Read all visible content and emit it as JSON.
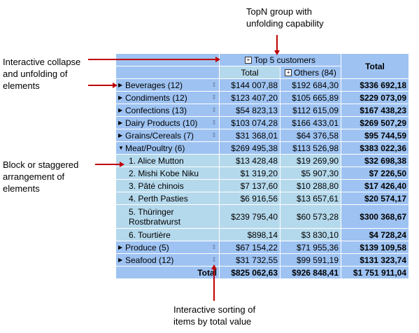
{
  "annotations": {
    "topn": "TopN group with\nunfolding capability",
    "collapse": "Interactive collapse\nand unfolding of\nelements",
    "block": "Block or staggered\narrangement of\nelements",
    "sorting": "Interactive sorting of\nitems by total value"
  },
  "header": {
    "group_title": "Top 5 customers",
    "total_label": "Total",
    "others_label": "Others (84)",
    "grand_total_label": "Total"
  },
  "rows": [
    {
      "label": "Beverages (12)",
      "a": "$144 007,88",
      "b": "$192 684,30",
      "t": "$336 692,18",
      "kind": "group"
    },
    {
      "label": "Condiments (12)",
      "a": "$123 407,20",
      "b": "$105 665,89",
      "t": "$229 073,09",
      "kind": "group"
    },
    {
      "label": "Confections (13)",
      "a": "$54 823,13",
      "b": "$112 615,09",
      "t": "$167 438,23",
      "kind": "group"
    },
    {
      "label": "Dairy Products (10)",
      "a": "$103 074,28",
      "b": "$166 433,01",
      "t": "$269 507,29",
      "kind": "group"
    },
    {
      "label": "Grains/Cereals (7)",
      "a": "$31 368,01",
      "b": "$64 376,58",
      "t": "$95 744,59",
      "kind": "group"
    },
    {
      "label": "Meat/Poultry (6)",
      "a": "$269 495,38",
      "b": "$113 526,98",
      "t": "$383 022,36",
      "kind": "expanded"
    },
    {
      "label": "1. Alice Mutton",
      "a": "$13 428,48",
      "b": "$19 269,90",
      "t": "$32 698,38",
      "kind": "child"
    },
    {
      "label": "2. Mishi Kobe Niku",
      "a": "$1 319,20",
      "b": "$5 907,30",
      "t": "$7 226,50",
      "kind": "child"
    },
    {
      "label": "3. Pâté chinois",
      "a": "$7 137,60",
      "b": "$10 288,80",
      "t": "$17 426,40",
      "kind": "child"
    },
    {
      "label": "4. Perth Pasties",
      "a": "$6 916,56",
      "b": "$13 657,61",
      "t": "$20 574,17",
      "kind": "child"
    },
    {
      "label": "5. Thüringer Rostbratwurst",
      "a": "$239 795,40",
      "b": "$60 573,28",
      "t": "$300 368,67",
      "kind": "child2"
    },
    {
      "label": "6. Tourtière",
      "a": "$898,14",
      "b": "$3 830,10",
      "t": "$4 728,24",
      "kind": "child"
    },
    {
      "label": "Produce (5)",
      "a": "$67 154,22",
      "b": "$71 955,36",
      "t": "$139 109,58",
      "kind": "group"
    },
    {
      "label": "Seafood (12)",
      "a": "$31 732,55",
      "b": "$99 591,19",
      "t": "$131 323,74",
      "kind": "group"
    }
  ],
  "grand": {
    "label": "Total",
    "a": "$825 062,63",
    "b": "$926 848,41",
    "t": "$1 751 911,04"
  },
  "colors": {
    "header": "#9ec3f2",
    "cell": "#b5d9ec",
    "arrow": "#c00000"
  },
  "icons": {
    "expand": "plus-box-icon",
    "collapsed_row": "triangle-right-icon",
    "expanded_row": "triangle-down-icon",
    "sort": "sort-icon"
  }
}
